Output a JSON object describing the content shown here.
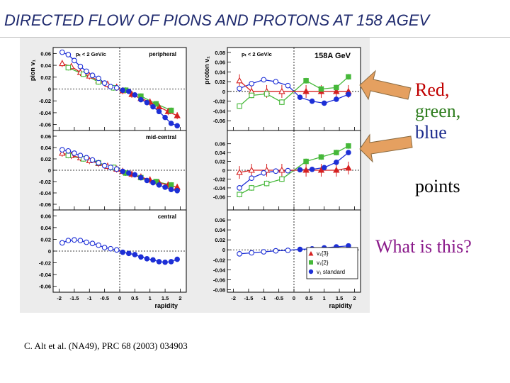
{
  "slide": {
    "title": "DIRECTED FLOW OF PIONS AND PROTONS AT 158 AGEV",
    "note_colors": [
      "Red,",
      "green,",
      "blue"
    ],
    "note_points": "points",
    "note_question": "What is this?",
    "citation": "C. Alt et al. (NA49), PRC 68 (2003) 034903"
  },
  "colors": {
    "title": "#1f2a6e",
    "red": "#d62020",
    "green": "#46b83a",
    "blue": "#1d2fd6",
    "note_red": "#c00000",
    "note_green": "#2e7d1e",
    "note_blue": "#1a2a8c",
    "note_question": "#8a1a8a",
    "arrow": "#e5a060"
  },
  "chart_data": {
    "type": "scatter",
    "xlabel": "rapidity",
    "x_ticks": [
      "-2",
      "-1.5",
      "-1",
      "-0.5",
      "0",
      "0.5",
      "1",
      "1.5",
      "2"
    ],
    "xlim": [
      -2.2,
      2.2
    ],
    "legend": {
      "placement": "bottom-right of proton central panel",
      "entries": [
        {
          "label": "v₁{3}",
          "series": "red"
        },
        {
          "label": "v₁{2}",
          "series": "green"
        },
        {
          "label": "v₁ standard",
          "series": "blue"
        }
      ]
    },
    "panels": [
      {
        "id": "pion-peripheral",
        "ylabel": "pion v₁",
        "ylim": [
          -0.07,
          0.07
        ],
        "y_ticks": [
          "0.06",
          "0.04",
          "0.02",
          "0",
          "-0.02",
          "-0.04",
          "-0.06"
        ],
        "annotation_left": "pₜ < 2 GeV/c",
        "annotation_right": "peripheral",
        "red": {
          "x": [
            -1.9,
            -1.6,
            -1.3,
            -1.0,
            -0.7,
            -0.4,
            -0.1,
            0.1,
            0.4,
            0.7,
            1.0,
            1.3,
            1.6,
            1.9
          ],
          "y": [
            0.043,
            0.038,
            0.028,
            0.022,
            0.014,
            0.008,
            0.003,
            -0.003,
            -0.009,
            -0.016,
            -0.022,
            -0.03,
            -0.038,
            -0.045
          ]
        },
        "green": {
          "x": [
            -1.7,
            -1.2,
            -0.7,
            -0.2,
            0.2,
            0.7,
            1.2,
            1.7
          ],
          "y": [
            0.036,
            0.025,
            0.012,
            0.002,
            -0.002,
            -0.012,
            -0.025,
            -0.036
          ]
        },
        "blue_open": {
          "x": [
            -1.9,
            -1.7,
            -1.5,
            -1.3,
            -1.1,
            -0.9,
            -0.7,
            -0.5,
            -0.3,
            -0.1
          ],
          "y": [
            0.062,
            0.058,
            0.048,
            0.038,
            0.03,
            0.023,
            0.018,
            0.01,
            0.004,
            0.002
          ]
        },
        "blue_filled": {
          "x": [
            0.1,
            0.3,
            0.5,
            0.7,
            0.9,
            1.1,
            1.3,
            1.5,
            1.7,
            1.9
          ],
          "y": [
            -0.002,
            -0.004,
            -0.01,
            -0.018,
            -0.023,
            -0.03,
            -0.038,
            -0.048,
            -0.058,
            -0.062
          ]
        }
      },
      {
        "id": "proton-peripheral",
        "ylabel": "proton v₁",
        "ylim": [
          -0.08,
          0.09
        ],
        "y_ticks": [
          "0.08",
          "0.06",
          "0.04",
          "0.02",
          "0",
          "-0.02",
          "-0.04",
          "-0.06"
        ],
        "annotation_left": "pₜ < 2 GeV/c",
        "annotation_right": "158A GeV",
        "red": {
          "x": [
            -1.8,
            -1.4,
            -0.9,
            -0.4,
            0.4,
            0.9,
            1.4,
            1.8
          ],
          "y": [
            0.022,
            0.0,
            0.0,
            0.0,
            0.0,
            0.0,
            0.0,
            0.0
          ]
        },
        "green": {
          "x": [
            -1.8,
            -1.4,
            -0.9,
            -0.4,
            0.4,
            0.9,
            1.4,
            1.8
          ],
          "y": [
            -0.03,
            -0.008,
            -0.005,
            -0.022,
            0.022,
            0.005,
            0.008,
            0.03
          ]
        },
        "blue_open": {
          "x": [
            -1.8,
            -1.4,
            -1.0,
            -0.6,
            -0.2
          ],
          "y": [
            0.006,
            0.016,
            0.024,
            0.02,
            0.012
          ]
        },
        "blue_filled": {
          "x": [
            0.2,
            0.6,
            1.0,
            1.4,
            1.8
          ],
          "y": [
            -0.012,
            -0.02,
            -0.024,
            -0.016,
            -0.006
          ]
        }
      },
      {
        "id": "pion-mid-central",
        "ylim": [
          -0.07,
          0.07
        ],
        "y_ticks": [
          "0.06",
          "0.04",
          "0.02",
          "0",
          "-0.02",
          "-0.04",
          "-0.06"
        ],
        "annotation_right": "mid-central",
        "red": {
          "x": [
            -1.9,
            -1.6,
            -1.3,
            -1.0,
            -0.7,
            -0.4,
            -0.1,
            0.1,
            0.4,
            0.7,
            1.0,
            1.3,
            1.6,
            1.9
          ],
          "y": [
            0.03,
            0.026,
            0.022,
            0.017,
            0.012,
            0.007,
            0.002,
            -0.002,
            -0.007,
            -0.012,
            -0.017,
            -0.022,
            -0.026,
            -0.03
          ]
        },
        "green": {
          "x": [
            -1.7,
            -1.2,
            -0.7,
            -0.2,
            0.2,
            0.7,
            1.2,
            1.7
          ],
          "y": [
            0.026,
            0.02,
            0.013,
            0.005,
            -0.005,
            -0.013,
            -0.02,
            -0.026
          ]
        },
        "blue_open": {
          "x": [
            -1.9,
            -1.7,
            -1.5,
            -1.3,
            -1.1,
            -0.9,
            -0.7,
            -0.5,
            -0.3,
            -0.1
          ],
          "y": [
            0.036,
            0.034,
            0.03,
            0.026,
            0.022,
            0.018,
            0.013,
            0.008,
            0.005,
            0.002
          ]
        },
        "blue_filled": {
          "x": [
            0.1,
            0.3,
            0.5,
            0.7,
            0.9,
            1.1,
            1.3,
            1.5,
            1.7,
            1.9
          ],
          "y": [
            -0.002,
            -0.005,
            -0.008,
            -0.013,
            -0.018,
            -0.022,
            -0.026,
            -0.03,
            -0.034,
            -0.036
          ]
        }
      },
      {
        "id": "proton-mid-central",
        "ylim": [
          -0.09,
          0.09
        ],
        "y_ticks": [
          "0.06",
          "0.04",
          "0.02",
          "0",
          "-0.02",
          "-0.04",
          "-0.06"
        ],
        "red": {
          "x": [
            -1.8,
            -1.4,
            -0.9,
            -0.4,
            0.4,
            0.9,
            1.4,
            1.8
          ],
          "y": [
            -0.005,
            0.0,
            0.0,
            0.0,
            0.0,
            0.0,
            0.0,
            0.005
          ]
        },
        "green": {
          "x": [
            -1.8,
            -1.4,
            -0.9,
            -0.4,
            0.4,
            0.9,
            1.4,
            1.8
          ],
          "y": [
            -0.055,
            -0.04,
            -0.03,
            -0.02,
            0.02,
            0.03,
            0.04,
            0.055
          ]
        },
        "blue_open": {
          "x": [
            -1.8,
            -1.4,
            -1.0,
            -0.6,
            -0.2
          ],
          "y": [
            -0.04,
            -0.018,
            -0.006,
            -0.002,
            -0.001
          ]
        },
        "blue_filled": {
          "x": [
            0.2,
            0.6,
            1.0,
            1.4,
            1.8
          ],
          "y": [
            0.001,
            0.002,
            0.006,
            0.018,
            0.04
          ]
        }
      },
      {
        "id": "pion-central",
        "ylim": [
          -0.07,
          0.07
        ],
        "y_ticks": [
          "0.06",
          "0.04",
          "0.02",
          "0",
          "-0.02",
          "-0.04",
          "-0.06"
        ],
        "annotation_right": "central",
        "blue_open": {
          "x": [
            -1.9,
            -1.7,
            -1.5,
            -1.3,
            -1.1,
            -0.9,
            -0.7,
            -0.5,
            -0.3,
            -0.1
          ],
          "y": [
            0.014,
            0.018,
            0.019,
            0.018,
            0.015,
            0.013,
            0.01,
            0.006,
            0.004,
            0.002
          ]
        },
        "blue_filled": {
          "x": [
            0.1,
            0.3,
            0.5,
            0.7,
            0.9,
            1.1,
            1.3,
            1.5,
            1.7,
            1.9
          ],
          "y": [
            -0.002,
            -0.004,
            -0.006,
            -0.01,
            -0.013,
            -0.015,
            -0.018,
            -0.019,
            -0.018,
            -0.014
          ]
        }
      },
      {
        "id": "proton-central",
        "ylim": [
          -0.085,
          0.08
        ],
        "y_ticks": [
          "0.06",
          "0.04",
          "0.02",
          "0",
          "-0.02",
          "-0.04",
          "-0.06",
          "-0.08"
        ],
        "blue_open": {
          "x": [
            -1.8,
            -1.4,
            -1.0,
            -0.6,
            -0.2
          ],
          "y": [
            -0.008,
            -0.006,
            -0.004,
            -0.002,
            -0.001
          ]
        },
        "blue_filled": {
          "x": [
            0.2,
            0.6,
            1.0,
            1.4,
            1.8
          ],
          "y": [
            0.001,
            0.002,
            0.004,
            0.006,
            0.008
          ]
        }
      }
    ]
  }
}
